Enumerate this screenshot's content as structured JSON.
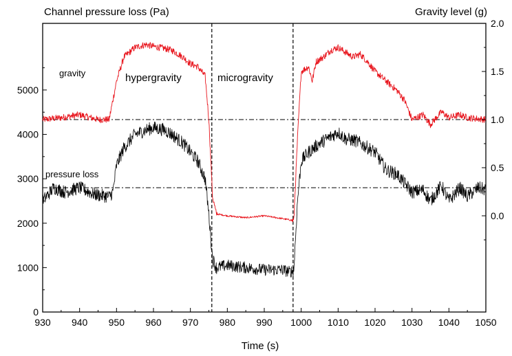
{
  "chart_data": {
    "type": "line",
    "title": "",
    "xlabel": "Time (s)",
    "ylabel_left": "Channel pressure loss (Pa)",
    "ylabel_right": "Gravity level (g)",
    "xlim": [
      930,
      1050
    ],
    "ylim_left": [
      0,
      6500
    ],
    "ylim_right": [
      -1.0,
      2.0
    ],
    "x_ticks": [
      "930",
      "940",
      "950",
      "960",
      "970",
      "980",
      "990",
      "1000",
      "1010",
      "1020",
      "1030",
      "1040",
      "1050"
    ],
    "y_left_ticks": [
      "0",
      "1000",
      "2000",
      "3000",
      "4000",
      "5000"
    ],
    "y_right_ticks": [
      "0.0",
      "0.5",
      "1.0",
      "1.5",
      "2.0"
    ],
    "grid": false,
    "reference_lines": [
      {
        "axis": "right",
        "y": 1.0,
        "style": "dash-dot"
      },
      {
        "axis": "left",
        "y": 2800,
        "style": "dash-dot"
      }
    ],
    "phase_boundaries": [
      975.8,
      997.8
    ],
    "annotations": [
      "gravity",
      "hypergravity",
      "microgravity",
      "pressure loss"
    ],
    "series": [
      {
        "name": "gravity",
        "axis": "right",
        "color": "#e8141c",
        "x": [
          930,
          935,
          940,
          945,
          948,
          950,
          952,
          955,
          958,
          960,
          963,
          965,
          968,
          970,
          972,
          974,
          975,
          976,
          977,
          980,
          985,
          990,
          995,
          998,
          999,
          1000,
          1002,
          1003,
          1004,
          1006,
          1008,
          1010,
          1012,
          1014,
          1016,
          1018,
          1020,
          1023,
          1026,
          1028,
          1030,
          1033,
          1035,
          1038,
          1040,
          1043,
          1045,
          1050
        ],
        "y": [
          1.0,
          1.02,
          1.05,
          1.0,
          1.0,
          1.4,
          1.65,
          1.75,
          1.78,
          1.76,
          1.74,
          1.72,
          1.65,
          1.58,
          1.55,
          1.45,
          1.0,
          0.2,
          0.02,
          0.0,
          -0.02,
          0.0,
          -0.03,
          -0.05,
          0.8,
          1.5,
          1.55,
          1.4,
          1.6,
          1.65,
          1.72,
          1.75,
          1.7,
          1.65,
          1.68,
          1.6,
          1.5,
          1.4,
          1.3,
          1.2,
          1.0,
          1.05,
          0.95,
          1.08,
          1.02,
          1.05,
          1.02,
          1.0
        ]
      },
      {
        "name": "pressure loss",
        "axis": "left",
        "color": "#000000",
        "x": [
          930,
          933,
          936,
          940,
          944,
          948,
          949,
          950,
          952,
          955,
          958,
          960,
          963,
          965,
          968,
          970,
          972,
          974,
          975,
          976,
          977,
          980,
          985,
          990,
          995,
          997,
          998,
          999,
          1000,
          1002,
          1005,
          1008,
          1010,
          1012,
          1015,
          1018,
          1020,
          1023,
          1026,
          1028,
          1030,
          1033,
          1035,
          1038,
          1040,
          1043,
          1045,
          1048,
          1050
        ],
        "y": [
          2500,
          2800,
          2700,
          2800,
          2650,
          2600,
          2700,
          3300,
          3700,
          4000,
          4100,
          4150,
          4100,
          4000,
          3800,
          3600,
          3400,
          3000,
          2200,
          1200,
          1000,
          1050,
          1000,
          950,
          950,
          900,
          950,
          2500,
          3400,
          3600,
          3800,
          3950,
          4050,
          3900,
          3850,
          3700,
          3600,
          3200,
          3100,
          2900,
          2700,
          2750,
          2500,
          2850,
          2500,
          2800,
          2600,
          2800,
          2750
        ]
      }
    ]
  }
}
